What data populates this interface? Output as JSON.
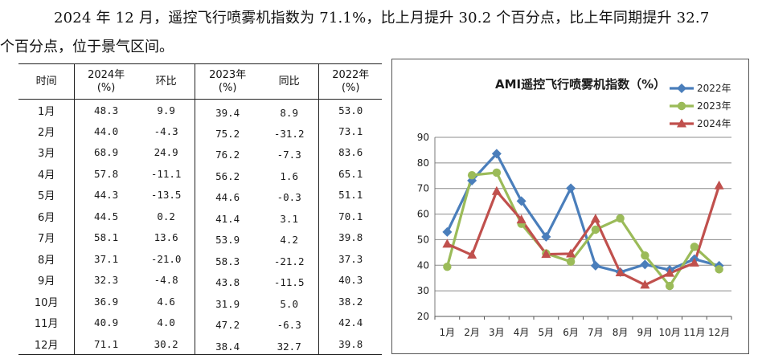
{
  "intro": {
    "line1": "2024 年 12 月，遥控飞行喷雾机指数为 71.1%，比上月提升 30.2 个百分点，比上年同期提升 32.7",
    "line2": "个百分点，位于景气区间。"
  },
  "table": {
    "headers": [
      {
        "top": "时间",
        "bottom": ""
      },
      {
        "top": "2024年",
        "bottom": "(%)"
      },
      {
        "top": "环比",
        "bottom": ""
      },
      {
        "top": "2023年",
        "bottom": "(%)"
      },
      {
        "top": "同比",
        "bottom": ""
      },
      {
        "top": "2022年",
        "bottom": "(%)"
      }
    ],
    "rows": [
      [
        "1月",
        "48.3",
        "9.9",
        "39.4",
        "8.9",
        "53.0"
      ],
      [
        "2月",
        "44.0",
        "-4.3",
        "75.2",
        "-31.2",
        "73.1"
      ],
      [
        "3月",
        "68.9",
        "24.9",
        "76.2",
        "-7.3",
        "83.6"
      ],
      [
        "4月",
        "57.8",
        "-11.1",
        "56.2",
        "1.6",
        "65.1"
      ],
      [
        "5月",
        "44.3",
        "-13.5",
        "44.6",
        "-0.3",
        "51.1"
      ],
      [
        "6月",
        "44.5",
        "0.2",
        "41.4",
        "3.1",
        "70.1"
      ],
      [
        "7月",
        "58.1",
        "13.6",
        "53.9",
        "4.2",
        "39.8"
      ],
      [
        "8月",
        "37.1",
        "-21.0",
        "58.3",
        "-21.2",
        "37.3"
      ],
      [
        "9月",
        "32.3",
        "-4.8",
        "43.8",
        "-11.5",
        "40.3"
      ],
      [
        "10月",
        "36.9",
        "4.6",
        "31.9",
        "5.0",
        "38.2"
      ],
      [
        "11月",
        "40.9",
        "4.0",
        "47.2",
        "-6.3",
        "42.4"
      ],
      [
        "12月",
        "71.1",
        "30.2",
        "38.4",
        "32.7",
        "39.8"
      ]
    ]
  },
  "chart_data": {
    "type": "line",
    "title": "AMI遥控飞行喷雾机指数（%）",
    "categories": [
      "1月",
      "2月",
      "3月",
      "4月",
      "5月",
      "6月",
      "7月",
      "8月",
      "9月",
      "10月",
      "11月",
      "12月"
    ],
    "yticks": [
      "20",
      "30",
      "40",
      "50",
      "60",
      "70",
      "80",
      "90"
    ],
    "ylim": [
      20,
      90
    ],
    "grid": true,
    "legend_position": "top-right",
    "series": [
      {
        "name": "2022年",
        "color": "#4a7ebb",
        "marker": "diamond",
        "values": [
          53.0,
          73.1,
          83.6,
          65.1,
          51.1,
          70.1,
          39.8,
          37.3,
          40.3,
          38.2,
          42.4,
          39.8
        ]
      },
      {
        "name": "2023年",
        "color": "#9bbb59",
        "marker": "circle",
        "values": [
          39.4,
          75.2,
          76.2,
          56.2,
          44.6,
          41.4,
          53.9,
          58.3,
          43.8,
          31.9,
          47.2,
          38.4
        ]
      },
      {
        "name": "2024年",
        "color": "#c0504d",
        "marker": "triangle",
        "values": [
          48.3,
          44.0,
          68.9,
          57.8,
          44.3,
          44.5,
          58.1,
          37.1,
          32.3,
          36.9,
          40.9,
          71.1
        ]
      }
    ]
  }
}
